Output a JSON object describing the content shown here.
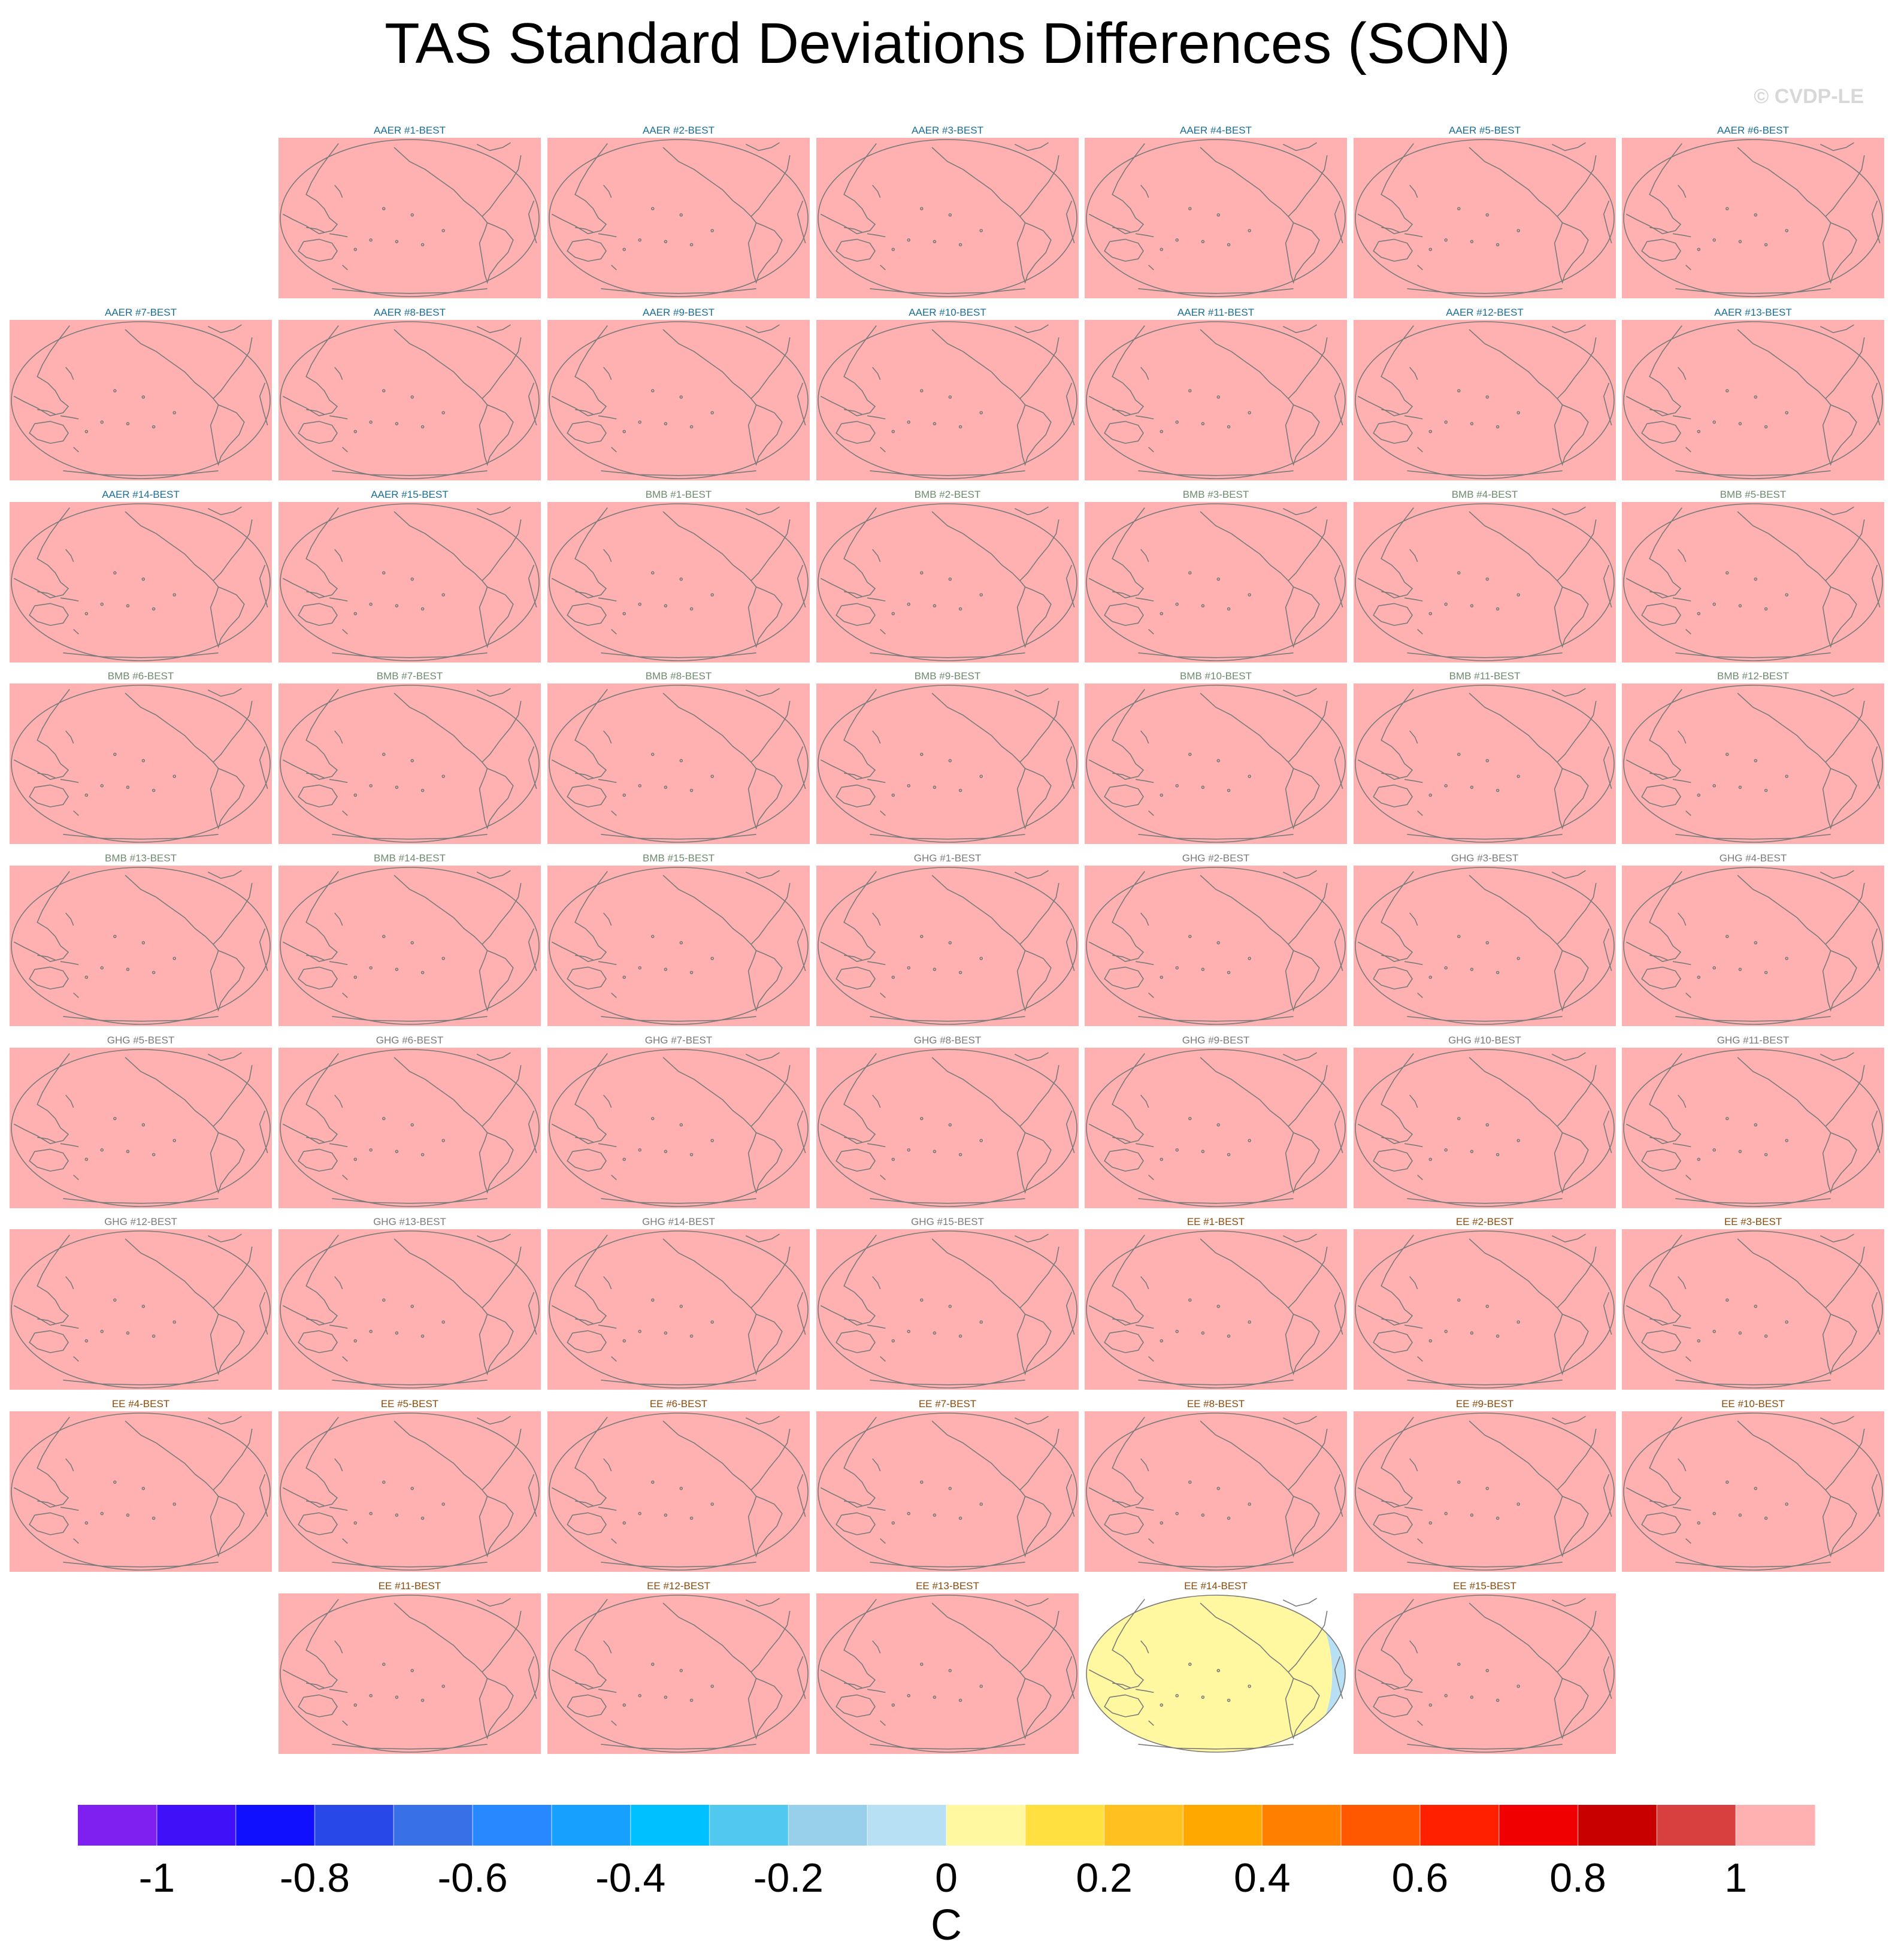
{
  "page": {
    "title": "TAS Standard Deviations Differences (SON)",
    "credit": "© CVDP-LE"
  },
  "colors": {
    "aaer_label": "#1a6e96",
    "bmb_label": "#6e8a6e",
    "ghg_label": "#7a7a7a",
    "ee_label": "#8a4a0a",
    "coastline": "#7a7a7a",
    "saturated_fill": "#ffb0b0"
  },
  "chart_data": {
    "type": "heatmap",
    "title": "TAS Standard Deviations Differences (SON)",
    "projection": "Robinson global map, Pacific-centered",
    "colorbar": {
      "label": "C",
      "tick_labels": [
        "-1",
        "-0.8",
        "-0.6",
        "-0.4",
        "-0.2",
        "0",
        "0.2",
        "0.4",
        "0.6",
        "0.8",
        "1"
      ],
      "levels": [
        -1,
        -0.9,
        -0.8,
        -0.7,
        -0.6,
        -0.5,
        -0.4,
        -0.3,
        -0.2,
        -0.1,
        0,
        0.1,
        0.2,
        0.3,
        0.4,
        0.5,
        0.6,
        0.7,
        0.8,
        0.9,
        1
      ],
      "colors": [
        "#8020f0",
        "#4010f8",
        "#1010ff",
        "#2848e8",
        "#3870e8",
        "#2888ff",
        "#18a0ff",
        "#00c0ff",
        "#50c8f0",
        "#98d0ec",
        "#b8e0f4",
        "#fff8a0",
        "#ffe040",
        "#ffc020",
        "#ffa800",
        "#ff8000",
        "#ff5800",
        "#ff2000",
        "#f00000",
        "#c80000",
        "#d84040",
        "#ffb0b0"
      ]
    },
    "panels": [
      {
        "label": "AAER #1-BEST",
        "group": "AAER",
        "fill": "saturated"
      },
      {
        "label": "AAER #2-BEST",
        "group": "AAER",
        "fill": "saturated"
      },
      {
        "label": "AAER #3-BEST",
        "group": "AAER",
        "fill": "saturated"
      },
      {
        "label": "AAER #4-BEST",
        "group": "AAER",
        "fill": "saturated"
      },
      {
        "label": "AAER #5-BEST",
        "group": "AAER",
        "fill": "saturated"
      },
      {
        "label": "AAER #6-BEST",
        "group": "AAER",
        "fill": "saturated"
      },
      {
        "label": "AAER #7-BEST",
        "group": "AAER",
        "fill": "saturated"
      },
      {
        "label": "AAER #8-BEST",
        "group": "AAER",
        "fill": "saturated"
      },
      {
        "label": "AAER #9-BEST",
        "group": "AAER",
        "fill": "saturated"
      },
      {
        "label": "AAER #10-BEST",
        "group": "AAER",
        "fill": "saturated"
      },
      {
        "label": "AAER #11-BEST",
        "group": "AAER",
        "fill": "saturated"
      },
      {
        "label": "AAER #12-BEST",
        "group": "AAER",
        "fill": "saturated"
      },
      {
        "label": "AAER #13-BEST",
        "group": "AAER",
        "fill": "saturated"
      },
      {
        "label": "AAER #14-BEST",
        "group": "AAER",
        "fill": "saturated"
      },
      {
        "label": "AAER #15-BEST",
        "group": "AAER",
        "fill": "saturated"
      },
      {
        "label": "BMB #1-BEST",
        "group": "BMB",
        "fill": "saturated"
      },
      {
        "label": "BMB #2-BEST",
        "group": "BMB",
        "fill": "saturated"
      },
      {
        "label": "BMB #3-BEST",
        "group": "BMB",
        "fill": "saturated"
      },
      {
        "label": "BMB #4-BEST",
        "group": "BMB",
        "fill": "saturated"
      },
      {
        "label": "BMB #5-BEST",
        "group": "BMB",
        "fill": "saturated"
      },
      {
        "label": "BMB #6-BEST",
        "group": "BMB",
        "fill": "saturated"
      },
      {
        "label": "BMB #7-BEST",
        "group": "BMB",
        "fill": "saturated"
      },
      {
        "label": "BMB #8-BEST",
        "group": "BMB",
        "fill": "saturated"
      },
      {
        "label": "BMB #9-BEST",
        "group": "BMB",
        "fill": "saturated"
      },
      {
        "label": "BMB #10-BEST",
        "group": "BMB",
        "fill": "saturated"
      },
      {
        "label": "BMB #11-BEST",
        "group": "BMB",
        "fill": "saturated"
      },
      {
        "label": "BMB #12-BEST",
        "group": "BMB",
        "fill": "saturated"
      },
      {
        "label": "BMB #13-BEST",
        "group": "BMB",
        "fill": "saturated"
      },
      {
        "label": "BMB #14-BEST",
        "group": "BMB",
        "fill": "saturated"
      },
      {
        "label": "BMB #15-BEST",
        "group": "BMB",
        "fill": "saturated"
      },
      {
        "label": "GHG #1-BEST",
        "group": "GHG",
        "fill": "saturated"
      },
      {
        "label": "GHG #2-BEST",
        "group": "GHG",
        "fill": "saturated"
      },
      {
        "label": "GHG #3-BEST",
        "group": "GHG",
        "fill": "saturated"
      },
      {
        "label": "GHG #4-BEST",
        "group": "GHG",
        "fill": "saturated"
      },
      {
        "label": "GHG #5-BEST",
        "group": "GHG",
        "fill": "saturated"
      },
      {
        "label": "GHG #6-BEST",
        "group": "GHG",
        "fill": "saturated"
      },
      {
        "label": "GHG #7-BEST",
        "group": "GHG",
        "fill": "saturated"
      },
      {
        "label": "GHG #8-BEST",
        "group": "GHG",
        "fill": "saturated"
      },
      {
        "label": "GHG #9-BEST",
        "group": "GHG",
        "fill": "saturated"
      },
      {
        "label": "GHG #10-BEST",
        "group": "GHG",
        "fill": "saturated"
      },
      {
        "label": "GHG #11-BEST",
        "group": "GHG",
        "fill": "saturated"
      },
      {
        "label": "GHG #12-BEST",
        "group": "GHG",
        "fill": "saturated"
      },
      {
        "label": "GHG #13-BEST",
        "group": "GHG",
        "fill": "saturated"
      },
      {
        "label": "GHG #14-BEST",
        "group": "GHG",
        "fill": "saturated"
      },
      {
        "label": "GHG #15-BEST",
        "group": "GHG",
        "fill": "saturated"
      },
      {
        "label": "EE #1-BEST",
        "group": "EE",
        "fill": "saturated"
      },
      {
        "label": "EE #2-BEST",
        "group": "EE",
        "fill": "saturated"
      },
      {
        "label": "EE #3-BEST",
        "group": "EE",
        "fill": "saturated"
      },
      {
        "label": "EE #4-BEST",
        "group": "EE",
        "fill": "saturated"
      },
      {
        "label": "EE #5-BEST",
        "group": "EE",
        "fill": "saturated"
      },
      {
        "label": "EE #6-BEST",
        "group": "EE",
        "fill": "saturated"
      },
      {
        "label": "EE #7-BEST",
        "group": "EE",
        "fill": "saturated"
      },
      {
        "label": "EE #8-BEST",
        "group": "EE",
        "fill": "saturated"
      },
      {
        "label": "EE #9-BEST",
        "group": "EE",
        "fill": "saturated"
      },
      {
        "label": "EE #10-BEST",
        "group": "EE",
        "fill": "saturated"
      },
      {
        "label": "EE #11-BEST",
        "group": "EE",
        "fill": "saturated"
      },
      {
        "label": "EE #12-BEST",
        "group": "EE",
        "fill": "saturated"
      },
      {
        "label": "EE #13-BEST",
        "group": "EE",
        "fill": "saturated"
      },
      {
        "label": "EE #14-BEST",
        "group": "EE",
        "fill": "near-zero",
        "value_range": [
          -0.1,
          0.1
        ]
      },
      {
        "label": "EE #15-BEST",
        "group": "EE",
        "fill": "saturated"
      }
    ]
  }
}
